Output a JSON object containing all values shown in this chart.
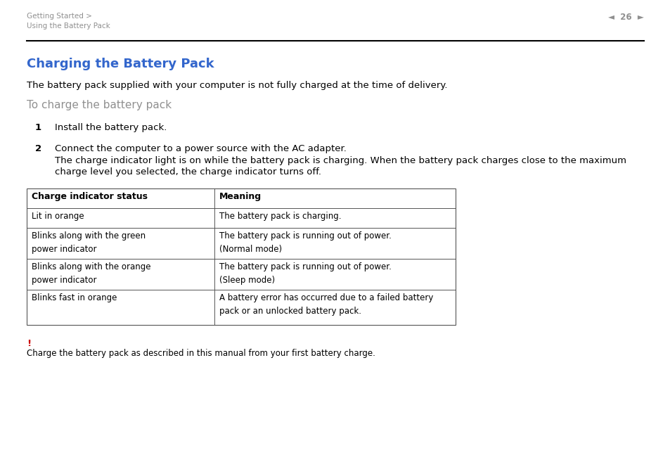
{
  "bg_color": "#ffffff",
  "header_text_color": "#909090",
  "header_breadcrumb_line1": "Getting Started >",
  "header_breadcrumb_line2": "Using the Battery Pack",
  "header_page": "26",
  "header_line_color": "#000000",
  "title": "Charging the Battery Pack",
  "title_color": "#3366cc",
  "title_fontsize": 13,
  "subtitle_color": "#909090",
  "subtitle": "To charge the battery pack",
  "subtitle_fontsize": 11,
  "intro_text": "The battery pack supplied with your computer is not fully charged at the time of delivery.",
  "intro_fontsize": 9.5,
  "step1_num": "1",
  "step1_text": "Install the battery pack.",
  "step2_num": "2",
  "step2_text_line1": "Connect the computer to a power source with the AC adapter.",
  "step2_text_line2": "The charge indicator light is on while the battery pack is charging. When the battery pack charges close to the maximum",
  "step2_text_line3": "charge level you selected, the charge indicator turns off.",
  "step_fontsize": 9.5,
  "table_col1_header": "Charge indicator status",
  "table_col2_header": "Meaning",
  "table_rows": [
    [
      "Lit in orange",
      "The battery pack is charging."
    ],
    [
      "Blinks along with the green\npower indicator",
      "The battery pack is running out of power.\n(Normal mode)"
    ],
    [
      "Blinks along with the orange\npower indicator",
      "The battery pack is running out of power.\n(Sleep mode)"
    ],
    [
      "Blinks fast in orange",
      "A battery error has occurred due to a failed battery\npack or an unlocked battery pack."
    ]
  ],
  "table_fontsize": 8.5,
  "table_header_fontsize": 9,
  "warning_bang": "!",
  "warning_bang_color": "#cc0000",
  "warning_text": "Charge the battery pack as described in this manual from your first battery charge.",
  "warning_fontsize": 8.5,
  "text_color": "#000000",
  "table_border_color": "#555555"
}
